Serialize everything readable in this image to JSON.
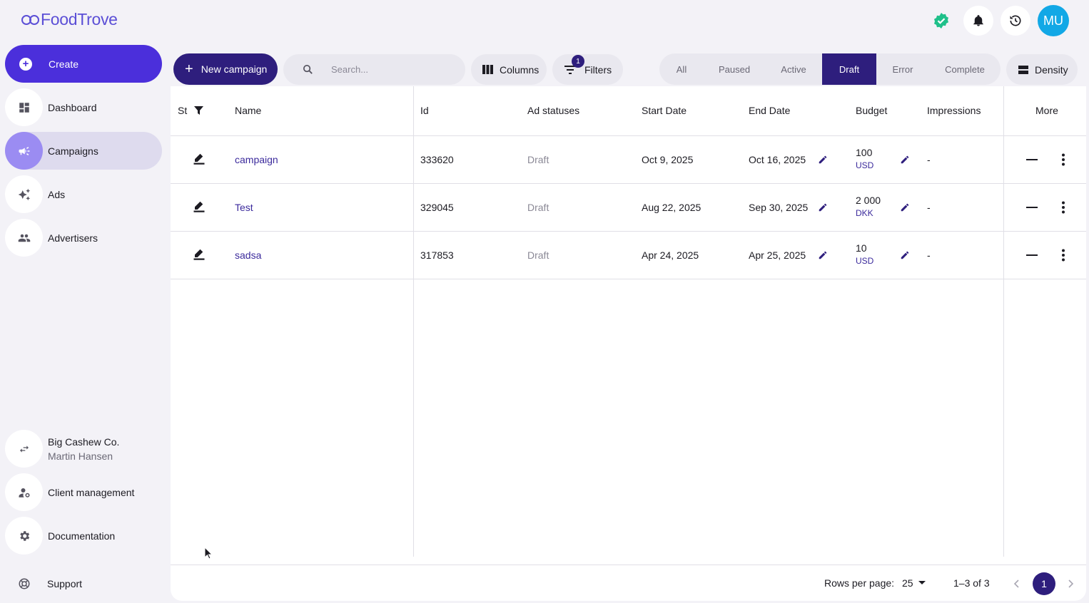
{
  "app": {
    "logo": "FoodTrove"
  },
  "topbar": {
    "avatar_initials": "MU"
  },
  "sidebar": {
    "create_label": "Create",
    "items": [
      {
        "label": "Dashboard",
        "icon": "dashboard-icon"
      },
      {
        "label": "Campaigns",
        "icon": "megaphone-icon",
        "active": true
      },
      {
        "label": "Ads",
        "icon": "sparkle-icon"
      },
      {
        "label": "Advertisers",
        "icon": "people-icon"
      }
    ],
    "account": {
      "company": "Big Cashew Co.",
      "user": "Martin Hansen"
    },
    "bottom_items": [
      {
        "label": "Client management"
      },
      {
        "label": "Documentation"
      }
    ],
    "support_label": "Support"
  },
  "toolbar": {
    "new_campaign_label": "New campaign",
    "search_placeholder": "Search...",
    "columns_label": "Columns",
    "filters_label": "Filters",
    "filters_count": "1",
    "density_label": "Density",
    "status_tabs": [
      "All",
      "Paused",
      "Active",
      "Draft",
      "Error",
      "Complete"
    ],
    "selected_tab": "Draft"
  },
  "table": {
    "columns": {
      "status": "St",
      "name": "Name",
      "id": "Id",
      "ad_statuses": "Ad statuses",
      "start_date": "Start Date",
      "end_date": "End Date",
      "budget": "Budget",
      "impressions": "Impressions",
      "more": "More"
    },
    "rows": [
      {
        "name": "campaign",
        "id": "333620",
        "ad_status": "Draft",
        "start": "Oct 9, 2025",
        "end": "Oct 16, 2025",
        "budget": "100",
        "currency": "USD",
        "impressions": "-"
      },
      {
        "name": "Test",
        "id": "329045",
        "ad_status": "Draft",
        "start": "Aug 22, 2025",
        "end": "Sep 30, 2025",
        "budget": "2 000",
        "currency": "DKK",
        "impressions": "-"
      },
      {
        "name": "sadsa",
        "id": "317853",
        "ad_status": "Draft",
        "start": "Apr 24, 2025",
        "end": "Apr 25, 2025",
        "budget": "10",
        "currency": "USD",
        "impressions": "-"
      }
    ]
  },
  "footer": {
    "rows_per_page_label": "Rows per page:",
    "rows_per_page_value": "25",
    "range_label": "1–3 of 3",
    "current_page": "1"
  },
  "colors": {
    "accent": "#2e1e7d",
    "create": "#4b2fdb",
    "avatar": "#12a8e6",
    "verified": "#1fc08a"
  }
}
